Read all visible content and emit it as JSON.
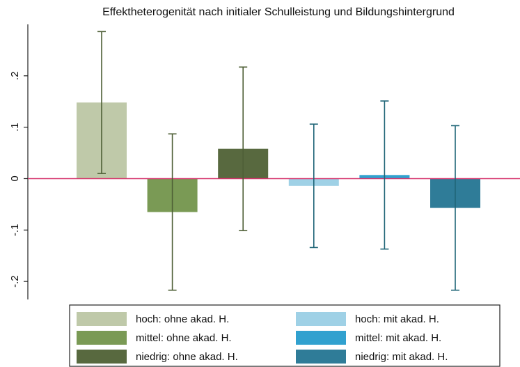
{
  "chart_data": {
    "type": "bar",
    "title": "Effektheterogenität nach initialer Schulleistung und Bildungshintergrund",
    "series": [
      {
        "name": "hoch: ohne akad. H.",
        "color": "#bfc9a9",
        "error_color": "#4e5f36",
        "values": [
          0.148
        ],
        "errors": [
          0.138
        ]
      },
      {
        "name": "mittel: ohne akad. H.",
        "color": "#7a9a55",
        "error_color": "#4e5f36",
        "values": [
          -0.065
        ],
        "errors": [
          0.152
        ]
      },
      {
        "name": "niedrig: ohne akad. H.",
        "color": "#58693f",
        "error_color": "#4e5f36",
        "values": [
          0.058
        ],
        "errors": [
          0.159
        ]
      },
      {
        "name": "hoch: mit akad. H.",
        "color": "#9fd1e6",
        "error_color": "#1f6577",
        "values": [
          -0.014
        ],
        "errors": [
          0.12
        ]
      },
      {
        "name": "mittel: mit akad. H.",
        "color": "#31a1cf",
        "error_color": "#1f6577",
        "values": [
          0.007
        ],
        "errors": [
          0.144
        ]
      },
      {
        "name": "niedrig: mit akad. H.",
        "color": "#2f7c98",
        "error_color": "#1f6577",
        "values": [
          -0.057
        ],
        "errors": [
          0.16
        ]
      }
    ],
    "ylim": [
      -0.235,
      0.3
    ],
    "yticks": [
      {
        "value": -0.2,
        "label": "-.2"
      },
      {
        "value": -0.1,
        "label": "-.1"
      },
      0,
      {
        "value": 0.1,
        "label": ".1"
      },
      {
        "value": 0.2,
        "label": ".2"
      }
    ],
    "refline": 0,
    "refline_color": "#d6336c",
    "grid": false
  }
}
